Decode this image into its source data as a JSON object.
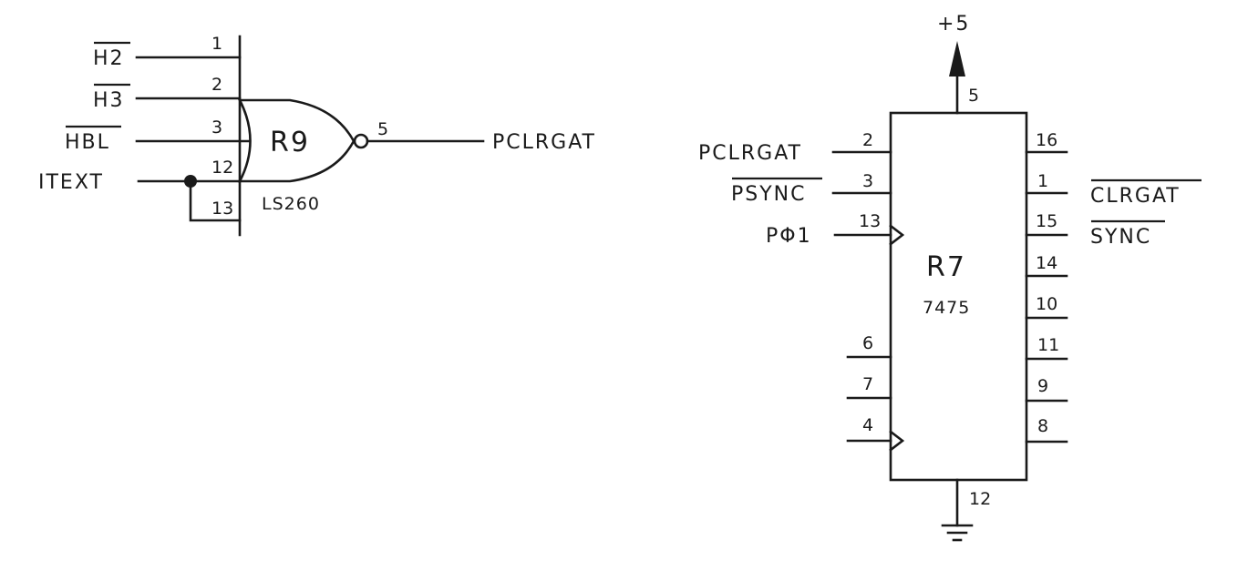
{
  "gate_r9": {
    "ref": "R9",
    "part": "LS260",
    "inputs": [
      {
        "pin": "1",
        "signal": "H2",
        "overbar": true
      },
      {
        "pin": "2",
        "signal": "H3",
        "overbar": true
      },
      {
        "pin": "3",
        "signal": "HBL",
        "overbar": true
      },
      {
        "pin": "12",
        "signal": "ITEXT",
        "overbar": false
      },
      {
        "pin": "13",
        "signal": "",
        "overbar": false
      }
    ],
    "output": {
      "pin": "5",
      "signal": "PCLRGAT"
    }
  },
  "chip_r7": {
    "ref": "R7",
    "part": "7475",
    "power": {
      "label": "+5",
      "pin": "5"
    },
    "ground_pin": "12",
    "left_pins": [
      {
        "pin": "2",
        "signal": "PCLRGAT",
        "overbar": false,
        "clock": false
      },
      {
        "pin": "3",
        "signal": "PSYNC",
        "overbar": true,
        "clock": false
      },
      {
        "pin": "13",
        "signal": "PΦ1",
        "overbar": false,
        "clock": true
      },
      {
        "pin": "6",
        "signal": "",
        "overbar": false,
        "clock": false
      },
      {
        "pin": "7",
        "signal": "",
        "overbar": false,
        "clock": false
      },
      {
        "pin": "4",
        "signal": "",
        "overbar": false,
        "clock": true
      }
    ],
    "right_pins": [
      {
        "pin": "16",
        "signal": "",
        "overbar": false
      },
      {
        "pin": "1",
        "signal": "CLRGAT",
        "overbar": true
      },
      {
        "pin": "15",
        "signal": "SYNC",
        "overbar": true
      },
      {
        "pin": "14",
        "signal": "",
        "overbar": false
      },
      {
        "pin": "10",
        "signal": "",
        "overbar": false
      },
      {
        "pin": "11",
        "signal": "",
        "overbar": false
      },
      {
        "pin": "9",
        "signal": "",
        "overbar": false
      },
      {
        "pin": "8",
        "signal": "",
        "overbar": false
      }
    ]
  }
}
